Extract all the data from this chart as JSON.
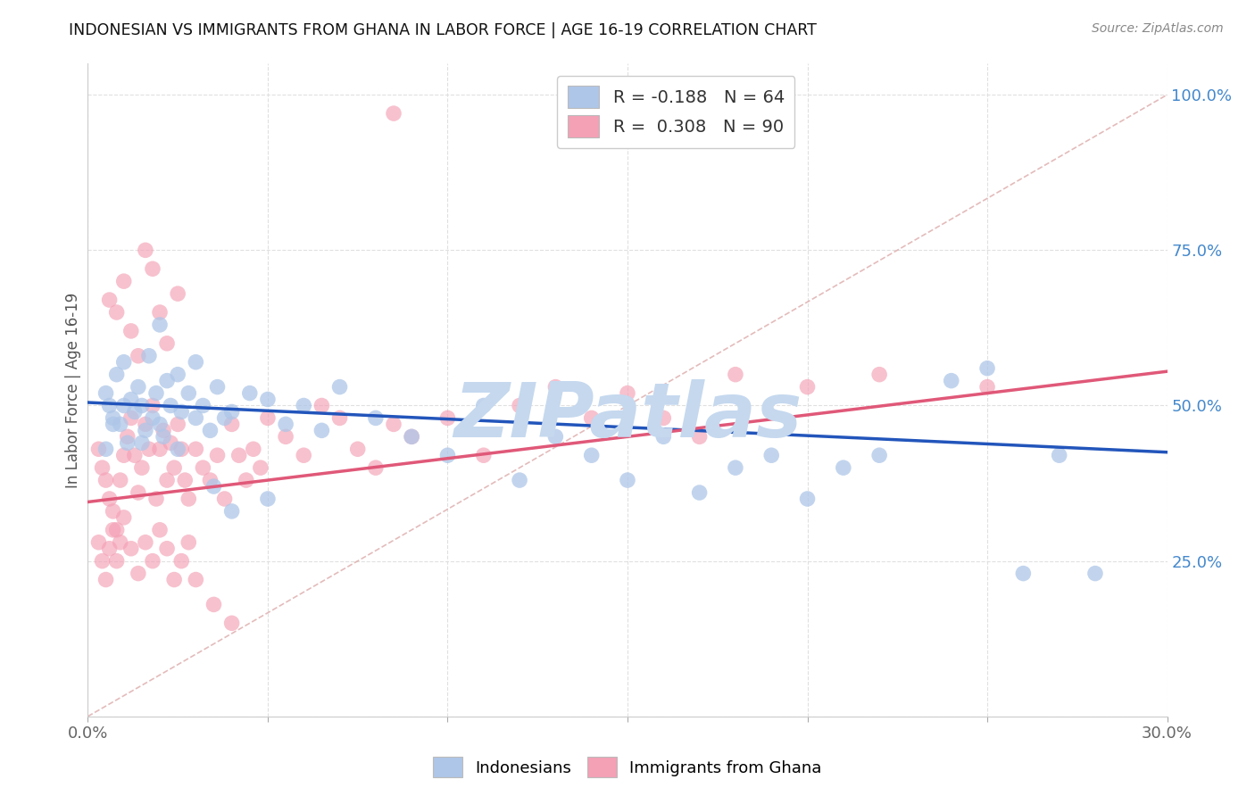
{
  "title": "INDONESIAN VS IMMIGRANTS FROM GHANA IN LABOR FORCE | AGE 16-19 CORRELATION CHART",
  "source": "Source: ZipAtlas.com",
  "ylabel": "In Labor Force | Age 16-19",
  "xlim": [
    0.0,
    0.3
  ],
  "ylim": [
    0.0,
    1.05
  ],
  "xticks": [
    0.0,
    0.05,
    0.1,
    0.15,
    0.2,
    0.25,
    0.3
  ],
  "yticks": [
    0.0,
    0.25,
    0.5,
    0.75,
    1.0
  ],
  "yright_labels": [
    "",
    "25.0%",
    "50.0%",
    "75.0%",
    "100.0%"
  ],
  "legend_text1": "R = -0.188   N = 64",
  "legend_text2": "R =  0.308   N = 90",
  "blue_color": "#aec6e8",
  "blue_line_color": "#2255bb",
  "pink_color": "#f4a0b5",
  "pink_line_color": "#e05878",
  "ref_line_color": "#ddaaaa",
  "watermark": "ZIPatlas",
  "watermark_color": "#c5d8ee",
  "blue_line_x": [
    0.0,
    0.3
  ],
  "blue_line_y": [
    0.505,
    0.425
  ],
  "pink_line_x": [
    0.0,
    0.3
  ],
  "pink_line_y": [
    0.345,
    0.555
  ],
  "ref_line_x": [
    0.0,
    0.3
  ],
  "ref_line_y": [
    0.0,
    1.0
  ],
  "blue_x": [
    0.005,
    0.006,
    0.007,
    0.008,
    0.009,
    0.01,
    0.011,
    0.012,
    0.013,
    0.014,
    0.015,
    0.016,
    0.017,
    0.018,
    0.019,
    0.02,
    0.021,
    0.022,
    0.023,
    0.025,
    0.026,
    0.028,
    0.03,
    0.032,
    0.034,
    0.036,
    0.038,
    0.04,
    0.045,
    0.05,
    0.055,
    0.06,
    0.065,
    0.07,
    0.08,
    0.09,
    0.1,
    0.11,
    0.12,
    0.13,
    0.14,
    0.15,
    0.16,
    0.17,
    0.18,
    0.19,
    0.2,
    0.21,
    0.22,
    0.24,
    0.25,
    0.26,
    0.27,
    0.28,
    0.005,
    0.007,
    0.01,
    0.015,
    0.02,
    0.025,
    0.03,
    0.035,
    0.04,
    0.05
  ],
  "blue_y": [
    0.52,
    0.5,
    0.48,
    0.55,
    0.47,
    0.57,
    0.44,
    0.51,
    0.49,
    0.53,
    0.5,
    0.46,
    0.58,
    0.48,
    0.52,
    0.63,
    0.45,
    0.54,
    0.5,
    0.55,
    0.49,
    0.52,
    0.57,
    0.5,
    0.46,
    0.53,
    0.48,
    0.49,
    0.52,
    0.51,
    0.47,
    0.5,
    0.46,
    0.53,
    0.48,
    0.45,
    0.42,
    0.5,
    0.38,
    0.45,
    0.42,
    0.38,
    0.45,
    0.36,
    0.4,
    0.42,
    0.35,
    0.4,
    0.42,
    0.54,
    0.56,
    0.23,
    0.42,
    0.23,
    0.43,
    0.47,
    0.5,
    0.44,
    0.47,
    0.43,
    0.48,
    0.37,
    0.33,
    0.35
  ],
  "pink_x": [
    0.003,
    0.004,
    0.005,
    0.006,
    0.007,
    0.008,
    0.009,
    0.01,
    0.011,
    0.012,
    0.013,
    0.014,
    0.015,
    0.016,
    0.017,
    0.018,
    0.019,
    0.02,
    0.021,
    0.022,
    0.023,
    0.024,
    0.025,
    0.026,
    0.027,
    0.028,
    0.03,
    0.032,
    0.034,
    0.036,
    0.038,
    0.04,
    0.042,
    0.044,
    0.046,
    0.048,
    0.05,
    0.055,
    0.06,
    0.065,
    0.07,
    0.075,
    0.08,
    0.085,
    0.09,
    0.1,
    0.11,
    0.12,
    0.13,
    0.14,
    0.15,
    0.16,
    0.17,
    0.18,
    0.2,
    0.22,
    0.25,
    0.003,
    0.004,
    0.005,
    0.006,
    0.007,
    0.008,
    0.009,
    0.01,
    0.012,
    0.014,
    0.016,
    0.018,
    0.02,
    0.022,
    0.024,
    0.026,
    0.028,
    0.03,
    0.035,
    0.04,
    0.006,
    0.008,
    0.01,
    0.012,
    0.014,
    0.016,
    0.018,
    0.02,
    0.022,
    0.025,
    0.085
  ],
  "pink_y": [
    0.43,
    0.4,
    0.38,
    0.35,
    0.33,
    0.3,
    0.38,
    0.42,
    0.45,
    0.48,
    0.42,
    0.36,
    0.4,
    0.47,
    0.43,
    0.5,
    0.35,
    0.43,
    0.46,
    0.38,
    0.44,
    0.4,
    0.47,
    0.43,
    0.38,
    0.35,
    0.43,
    0.4,
    0.38,
    0.42,
    0.35,
    0.47,
    0.42,
    0.38,
    0.43,
    0.4,
    0.48,
    0.45,
    0.42,
    0.5,
    0.48,
    0.43,
    0.4,
    0.47,
    0.45,
    0.48,
    0.42,
    0.5,
    0.53,
    0.48,
    0.52,
    0.48,
    0.45,
    0.55,
    0.53,
    0.55,
    0.53,
    0.28,
    0.25,
    0.22,
    0.27,
    0.3,
    0.25,
    0.28,
    0.32,
    0.27,
    0.23,
    0.28,
    0.25,
    0.3,
    0.27,
    0.22,
    0.25,
    0.28,
    0.22,
    0.18,
    0.15,
    0.67,
    0.65,
    0.7,
    0.62,
    0.58,
    0.75,
    0.72,
    0.65,
    0.6,
    0.68,
    0.97
  ]
}
